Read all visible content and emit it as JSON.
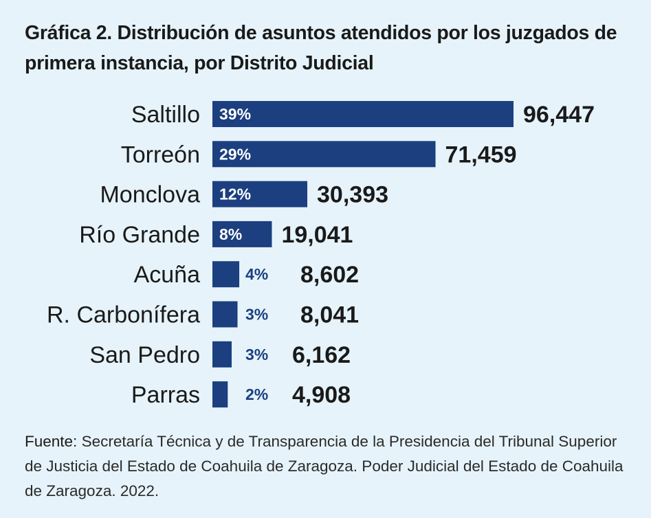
{
  "title": "Gráfica 2. Distribución de asuntos atendidos por los juzgados de primera instancia, por Distrito Judicial",
  "colors": {
    "bar": "#1b3f7f",
    "background": "#e6f3fa"
  },
  "chart_data": {
    "type": "bar",
    "orientation": "horizontal",
    "title": "Gráfica 2. Distribución de asuntos atendidos por los juzgados de primera instancia, por Distrito Judicial",
    "xlabel": "",
    "ylabel": "",
    "categories": [
      "Saltillo",
      "Torreón",
      "Monclova",
      "Río Grande",
      "Acuña",
      "R. Carbonífera",
      "San Pedro",
      "Parras"
    ],
    "values": [
      96447,
      71459,
      30393,
      19041,
      8602,
      8041,
      6162,
      4908
    ],
    "value_labels": [
      "96,447",
      "71,459",
      "30,393",
      "19,041",
      "8,602",
      "8,041",
      "6,162",
      "4,908"
    ],
    "percent_labels": [
      "39%",
      "29%",
      "12%",
      "8%",
      "4%",
      "3%",
      "3%",
      "2%"
    ],
    "grid": false,
    "legend": "none"
  },
  "source": {
    "lead": "Fuente:",
    "text": " Secretaría Técnica y de Transparencia de la Presidencia del Tribunal Superior de Justicia del Estado de Coahuila de Zaragoza. Poder Judicial del Estado de Coahuila de Zaragoza. 2022."
  }
}
